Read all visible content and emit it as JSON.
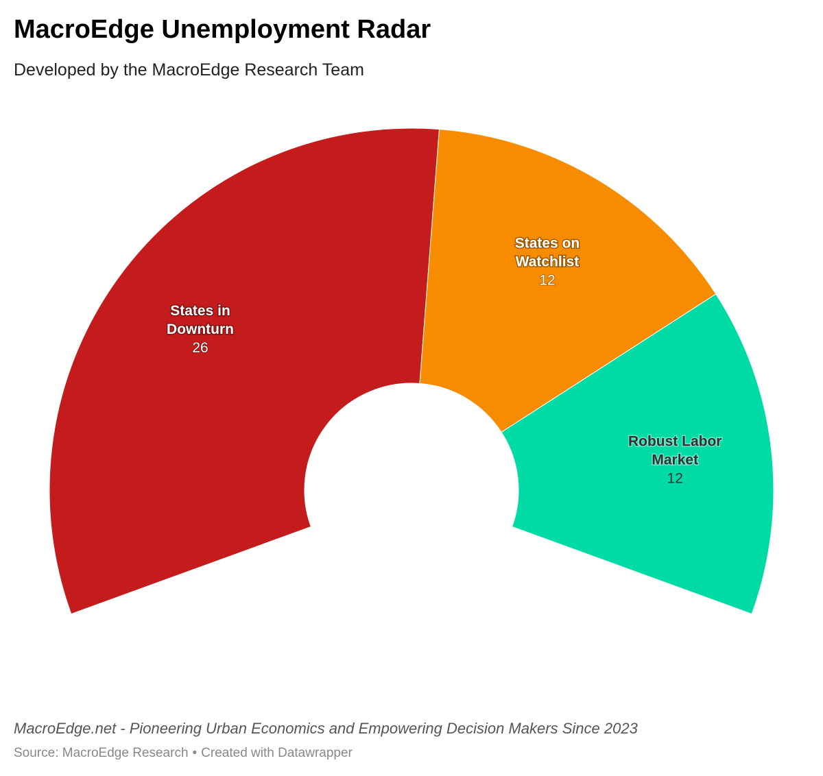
{
  "header": {
    "title": "MacroEdge Unemployment Radar",
    "subtitle": "Developed by the MacroEdge Research Team"
  },
  "chart_data": {
    "type": "pie",
    "style": "semicircle-donut",
    "categories": [
      "States in Downturn",
      "States on Watchlist",
      "Robust Labor Market"
    ],
    "values": [
      26,
      12,
      12
    ],
    "labels": [
      [
        "States in",
        "Downturn"
      ],
      [
        "States on",
        "Watchlist"
      ],
      [
        "Robust Labor",
        "Market"
      ]
    ],
    "colors": [
      "#c41c1c",
      "#f78c00",
      "#00dba6"
    ],
    "label_text_colors": [
      "#ffffff",
      "#ffffff",
      "#333333"
    ],
    "legend": "none"
  },
  "footer": {
    "note": "MacroEdge.net - Pioneering Urban Economics and Empowering Decision Makers Since 2023",
    "source": "Source: MacroEdge Research",
    "separator": "•",
    "credit": "Created with Datawrapper"
  }
}
